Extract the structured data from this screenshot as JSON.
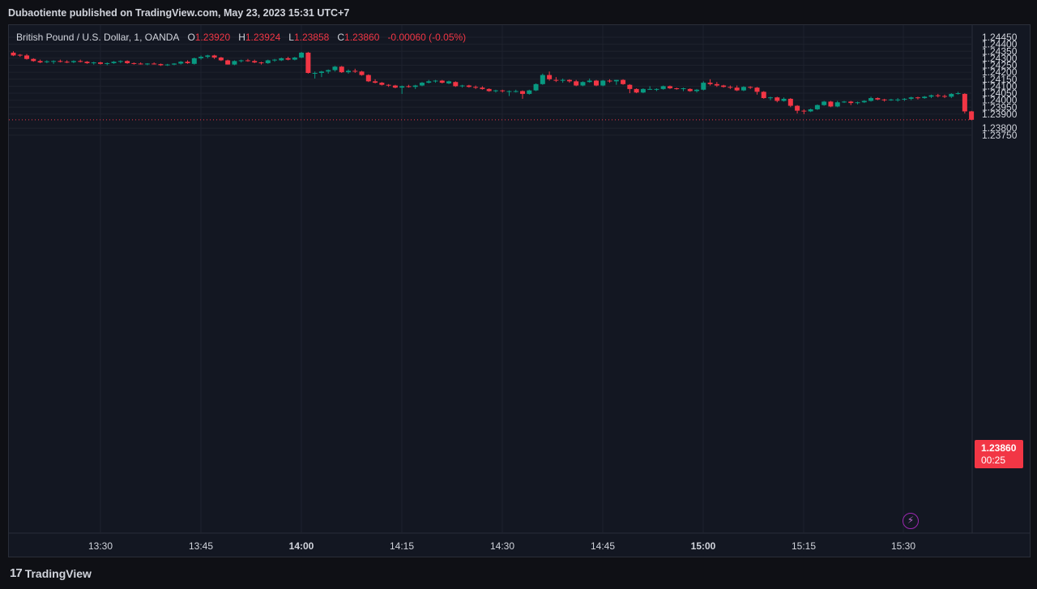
{
  "header": {
    "publish_text": "Dubaotiente published on TradingView.com, May 23, 2023 15:31 UTC+7"
  },
  "legend": {
    "symbol": "British Pound / U.S. Dollar, 1, OANDA",
    "o_label": "O",
    "o_value": "1.23920",
    "h_label": "H",
    "h_value": "1.23924",
    "l_label": "L",
    "l_value": "1.23858",
    "c_label": "C",
    "c_value": "1.23860",
    "change": "-0.00060 (-0.05%)"
  },
  "price_tag": {
    "price": "1.23860",
    "countdown": "00:25"
  },
  "footer": {
    "brand": "TradingView",
    "logo_mark": "17"
  },
  "colors": {
    "up": "#089981",
    "down": "#f23645",
    "grid": "#1e222d",
    "background": "#131722",
    "text": "#d1d4dc"
  },
  "icons": {
    "bolt": "lightning-icon"
  },
  "chart_data": {
    "type": "candlestick",
    "symbol": "GBPUSD",
    "interval": "1",
    "ylim": [
      1.2372,
      1.2449
    ],
    "y_ticks": [
      "1.24450",
      "1.24400",
      "1.24350",
      "1.24300",
      "1.24250",
      "1.24200",
      "1.24150",
      "1.24100",
      "1.24050",
      "1.24000",
      "1.23950",
      "1.23900",
      "1.23800",
      "1.23750"
    ],
    "x_ticks": [
      {
        "label": "13:30",
        "bold": false
      },
      {
        "label": "13:45",
        "bold": false
      },
      {
        "label": "14:00",
        "bold": true
      },
      {
        "label": "14:15",
        "bold": false
      },
      {
        "label": "14:30",
        "bold": false
      },
      {
        "label": "14:45",
        "bold": false
      },
      {
        "label": "15:00",
        "bold": true
      },
      {
        "label": "15:15",
        "bold": false
      },
      {
        "label": "15:30",
        "bold": false
      }
    ],
    "last_price": 1.2386,
    "candles": [
      [
        1.2434,
        1.2435,
        1.24315,
        1.2432
      ],
      [
        1.24325,
        1.2433,
        1.2431,
        1.2432
      ],
      [
        1.2432,
        1.2433,
        1.2429,
        1.24295
      ],
      [
        1.24295,
        1.243,
        1.24275,
        1.2428
      ],
      [
        1.2428,
        1.2429,
        1.24265,
        1.2427
      ],
      [
        1.24272,
        1.24285,
        1.24265,
        1.24278
      ],
      [
        1.24275,
        1.24285,
        1.2426,
        1.2428
      ],
      [
        1.2428,
        1.2429,
        1.2427,
        1.24278
      ],
      [
        1.24275,
        1.24285,
        1.24265,
        1.2427
      ],
      [
        1.24272,
        1.24285,
        1.24265,
        1.2428
      ],
      [
        1.2428,
        1.2429,
        1.2427,
        1.24275
      ],
      [
        1.24275,
        1.2428,
        1.2426,
        1.24265
      ],
      [
        1.24265,
        1.24275,
        1.24255,
        1.2427
      ],
      [
        1.2427,
        1.24275,
        1.24255,
        1.2426
      ],
      [
        1.2426,
        1.2427,
        1.2425,
        1.24265
      ],
      [
        1.24265,
        1.2428,
        1.2426,
        1.24275
      ],
      [
        1.24275,
        1.24285,
        1.24265,
        1.2428
      ],
      [
        1.2428,
        1.24285,
        1.2426,
        1.24265
      ],
      [
        1.24265,
        1.2427,
        1.24255,
        1.24262
      ],
      [
        1.24262,
        1.2427,
        1.24255,
        1.24258
      ],
      [
        1.24258,
        1.24265,
        1.2425,
        1.24262
      ],
      [
        1.24262,
        1.2427,
        1.24255,
        1.24258
      ],
      [
        1.24258,
        1.24262,
        1.24245,
        1.2425
      ],
      [
        1.2425,
        1.2426,
        1.24245,
        1.24255
      ],
      [
        1.24255,
        1.24265,
        1.2425,
        1.24262
      ],
      [
        1.24262,
        1.2428,
        1.24255,
        1.24275
      ],
      [
        1.24275,
        1.24285,
        1.2426,
        1.24265
      ],
      [
        1.2426,
        1.24305,
        1.24255,
        1.243
      ],
      [
        1.243,
        1.2432,
        1.2429,
        1.2431
      ],
      [
        1.2431,
        1.24325,
        1.243,
        1.2432
      ],
      [
        1.2432,
        1.24325,
        1.24295,
        1.24305
      ],
      [
        1.24305,
        1.2431,
        1.2428,
        1.24285
      ],
      [
        1.24285,
        1.2429,
        1.24255,
        1.24255
      ],
      [
        1.24255,
        1.24285,
        1.2425,
        1.2428
      ],
      [
        1.2428,
        1.2429,
        1.2427,
        1.24285
      ],
      [
        1.24285,
        1.24295,
        1.24275,
        1.2428
      ],
      [
        1.2428,
        1.2429,
        1.24265,
        1.2427
      ],
      [
        1.2427,
        1.24275,
        1.24255,
        1.24265
      ],
      [
        1.24265,
        1.2429,
        1.2426,
        1.24285
      ],
      [
        1.24285,
        1.24295,
        1.24275,
        1.2429
      ],
      [
        1.24285,
        1.24305,
        1.2428,
        1.243
      ],
      [
        1.243,
        1.2431,
        1.24285,
        1.2429
      ],
      [
        1.2429,
        1.2431,
        1.24285,
        1.24305
      ],
      [
        1.24305,
        1.24345,
        1.243,
        1.2434
      ],
      [
        1.2434,
        1.24345,
        1.2419,
        1.24195
      ],
      [
        1.24195,
        1.24205,
        1.24155,
        1.24195
      ],
      [
        1.24195,
        1.2421,
        1.24165,
        1.24205
      ],
      [
        1.24205,
        1.2422,
        1.2419,
        1.24215
      ],
      [
        1.24215,
        1.24245,
        1.24205,
        1.2424
      ],
      [
        1.2424,
        1.24245,
        1.24195,
        1.242
      ],
      [
        1.242,
        1.2422,
        1.2419,
        1.2421
      ],
      [
        1.2421,
        1.24225,
        1.24195,
        1.24205
      ],
      [
        1.24205,
        1.2421,
        1.24175,
        1.2418
      ],
      [
        1.2418,
        1.24185,
        1.2413,
        1.24135
      ],
      [
        1.24135,
        1.2415,
        1.2412,
        1.24125
      ],
      [
        1.24125,
        1.2413,
        1.24105,
        1.2411
      ],
      [
        1.2411,
        1.24115,
        1.24095,
        1.24105
      ],
      [
        1.24105,
        1.2411,
        1.24085,
        1.2409
      ],
      [
        1.2409,
        1.24105,
        1.24045,
        1.241
      ],
      [
        1.241,
        1.2411,
        1.2409,
        1.24095
      ],
      [
        1.24095,
        1.2411,
        1.2408,
        1.24105
      ],
      [
        1.24105,
        1.2413,
        1.241,
        1.24125
      ],
      [
        1.24125,
        1.24145,
        1.2412,
        1.24135
      ],
      [
        1.24135,
        1.24145,
        1.24125,
        1.2414
      ],
      [
        1.2414,
        1.24145,
        1.2412,
        1.24125
      ],
      [
        1.2412,
        1.2414,
        1.24115,
        1.24135
      ],
      [
        1.2413,
        1.24135,
        1.24095,
        1.241
      ],
      [
        1.241,
        1.2411,
        1.2409,
        1.24105
      ],
      [
        1.24105,
        1.2411,
        1.2409,
        1.24095
      ],
      [
        1.24095,
        1.24105,
        1.2408,
        1.2409
      ],
      [
        1.2409,
        1.241,
        1.24075,
        1.2408
      ],
      [
        1.2408,
        1.24085,
        1.2406,
        1.24065
      ],
      [
        1.24065,
        1.24075,
        1.24055,
        1.2407
      ],
      [
        1.2407,
        1.24075,
        1.24055,
        1.24065
      ],
      [
        1.24065,
        1.2407,
        1.2403,
        1.24065
      ],
      [
        1.24065,
        1.24075,
        1.24055,
        1.24065
      ],
      [
        1.24065,
        1.2407,
        1.2401,
        1.24045
      ],
      [
        1.24045,
        1.24075,
        1.2404,
        1.2407
      ],
      [
        1.2407,
        1.2412,
        1.24065,
        1.24115
      ],
      [
        1.24115,
        1.2419,
        1.2411,
        1.2418
      ],
      [
        1.2418,
        1.24205,
        1.2414,
        1.2415
      ],
      [
        1.24145,
        1.24165,
        1.2413,
        1.2414
      ],
      [
        1.2414,
        1.24155,
        1.24125,
        1.24145
      ],
      [
        1.24145,
        1.2415,
        1.24125,
        1.24135
      ],
      [
        1.24135,
        1.24145,
        1.241,
        1.24105
      ],
      [
        1.24105,
        1.24135,
        1.241,
        1.2413
      ],
      [
        1.2413,
        1.24155,
        1.24125,
        1.2414
      ],
      [
        1.2414,
        1.24145,
        1.241,
        1.24105
      ],
      [
        1.24105,
        1.24145,
        1.241,
        1.2414
      ],
      [
        1.2414,
        1.2415,
        1.24125,
        1.24135
      ],
      [
        1.24135,
        1.24145,
        1.2411,
        1.24145
      ],
      [
        1.24145,
        1.2415,
        1.2411,
        1.24115
      ],
      [
        1.2411,
        1.24115,
        1.2405,
        1.2408
      ],
      [
        1.2408,
        1.24085,
        1.2405,
        1.24055
      ],
      [
        1.24055,
        1.24085,
        1.2405,
        1.2408
      ],
      [
        1.2408,
        1.241,
        1.24075,
        1.2408
      ],
      [
        1.2408,
        1.24085,
        1.24065,
        1.2408
      ],
      [
        1.2408,
        1.24105,
        1.24075,
        1.241
      ],
      [
        1.241,
        1.24105,
        1.2408,
        1.24085
      ],
      [
        1.24085,
        1.2409,
        1.24075,
        1.2408
      ],
      [
        1.2408,
        1.2409,
        1.24065,
        1.24085
      ],
      [
        1.2408,
        1.24085,
        1.2406,
        1.24065
      ],
      [
        1.24065,
        1.2408,
        1.24055,
        1.24075
      ],
      [
        1.24075,
        1.24135,
        1.2407,
        1.24125
      ],
      [
        1.24125,
        1.2415,
        1.24105,
        1.24115
      ],
      [
        1.24115,
        1.2413,
        1.24095,
        1.24105
      ],
      [
        1.24105,
        1.2411,
        1.2409,
        1.24095
      ],
      [
        1.24095,
        1.24105,
        1.2408,
        1.2409
      ],
      [
        1.2409,
        1.24105,
        1.24065,
        1.2407
      ],
      [
        1.2407,
        1.241,
        1.24065,
        1.24095
      ],
      [
        1.24095,
        1.241,
        1.2408,
        1.2409
      ],
      [
        1.2409,
        1.24095,
        1.2404,
        1.2406
      ],
      [
        1.2406,
        1.24065,
        1.2401,
        1.24015
      ],
      [
        1.24015,
        1.24025,
        1.24,
        1.2402
      ],
      [
        1.2402,
        1.24025,
        1.23985,
        1.23995
      ],
      [
        1.23995,
        1.2402,
        1.2399,
        1.2401
      ],
      [
        1.2401,
        1.24015,
        1.2395,
        1.2396
      ],
      [
        1.2396,
        1.23965,
        1.23905,
        1.23925
      ],
      [
        1.23925,
        1.23935,
        1.239,
        1.2392
      ],
      [
        1.2392,
        1.2394,
        1.23915,
        1.23935
      ],
      [
        1.23935,
        1.2397,
        1.2393,
        1.23965
      ],
      [
        1.23965,
        1.23995,
        1.2396,
        1.2399
      ],
      [
        1.2399,
        1.23995,
        1.2395,
        1.23955
      ],
      [
        1.23955,
        1.23995,
        1.2395,
        1.23985
      ],
      [
        1.23985,
        1.23995,
        1.2398,
        1.2399
      ],
      [
        1.2399,
        1.23995,
        1.23965,
        1.2398
      ],
      [
        1.2398,
        1.2399,
        1.2397,
        1.23985
      ],
      [
        1.23985,
        1.24,
        1.2398,
        1.23995
      ],
      [
        1.23995,
        1.24025,
        1.2399,
        1.24015
      ],
      [
        1.24015,
        1.2402,
        1.24,
        1.24005
      ],
      [
        1.24005,
        1.2401,
        1.2399,
        1.24
      ],
      [
        1.24,
        1.2401,
        1.23995,
        1.24005
      ],
      [
        1.24005,
        1.24015,
        1.2399,
        1.24005
      ],
      [
        1.24005,
        1.24015,
        1.23995,
        1.2401
      ],
      [
        1.2401,
        1.24025,
        1.24,
        1.2402
      ],
      [
        1.2402,
        1.24025,
        1.24005,
        1.24015
      ],
      [
        1.24015,
        1.2403,
        1.2401,
        1.24025
      ],
      [
        1.24025,
        1.2404,
        1.24015,
        1.24035
      ],
      [
        1.24035,
        1.24045,
        1.2402,
        1.2403
      ],
      [
        1.2403,
        1.2404,
        1.24015,
        1.24025
      ],
      [
        1.24025,
        1.2405,
        1.24015,
        1.24045
      ],
      [
        1.24045,
        1.2406,
        1.2404,
        1.2405
      ],
      [
        1.24045,
        1.2405,
        1.23905,
        1.2392
      ],
      [
        1.2392,
        1.23924,
        1.23858,
        1.2386
      ]
    ]
  }
}
